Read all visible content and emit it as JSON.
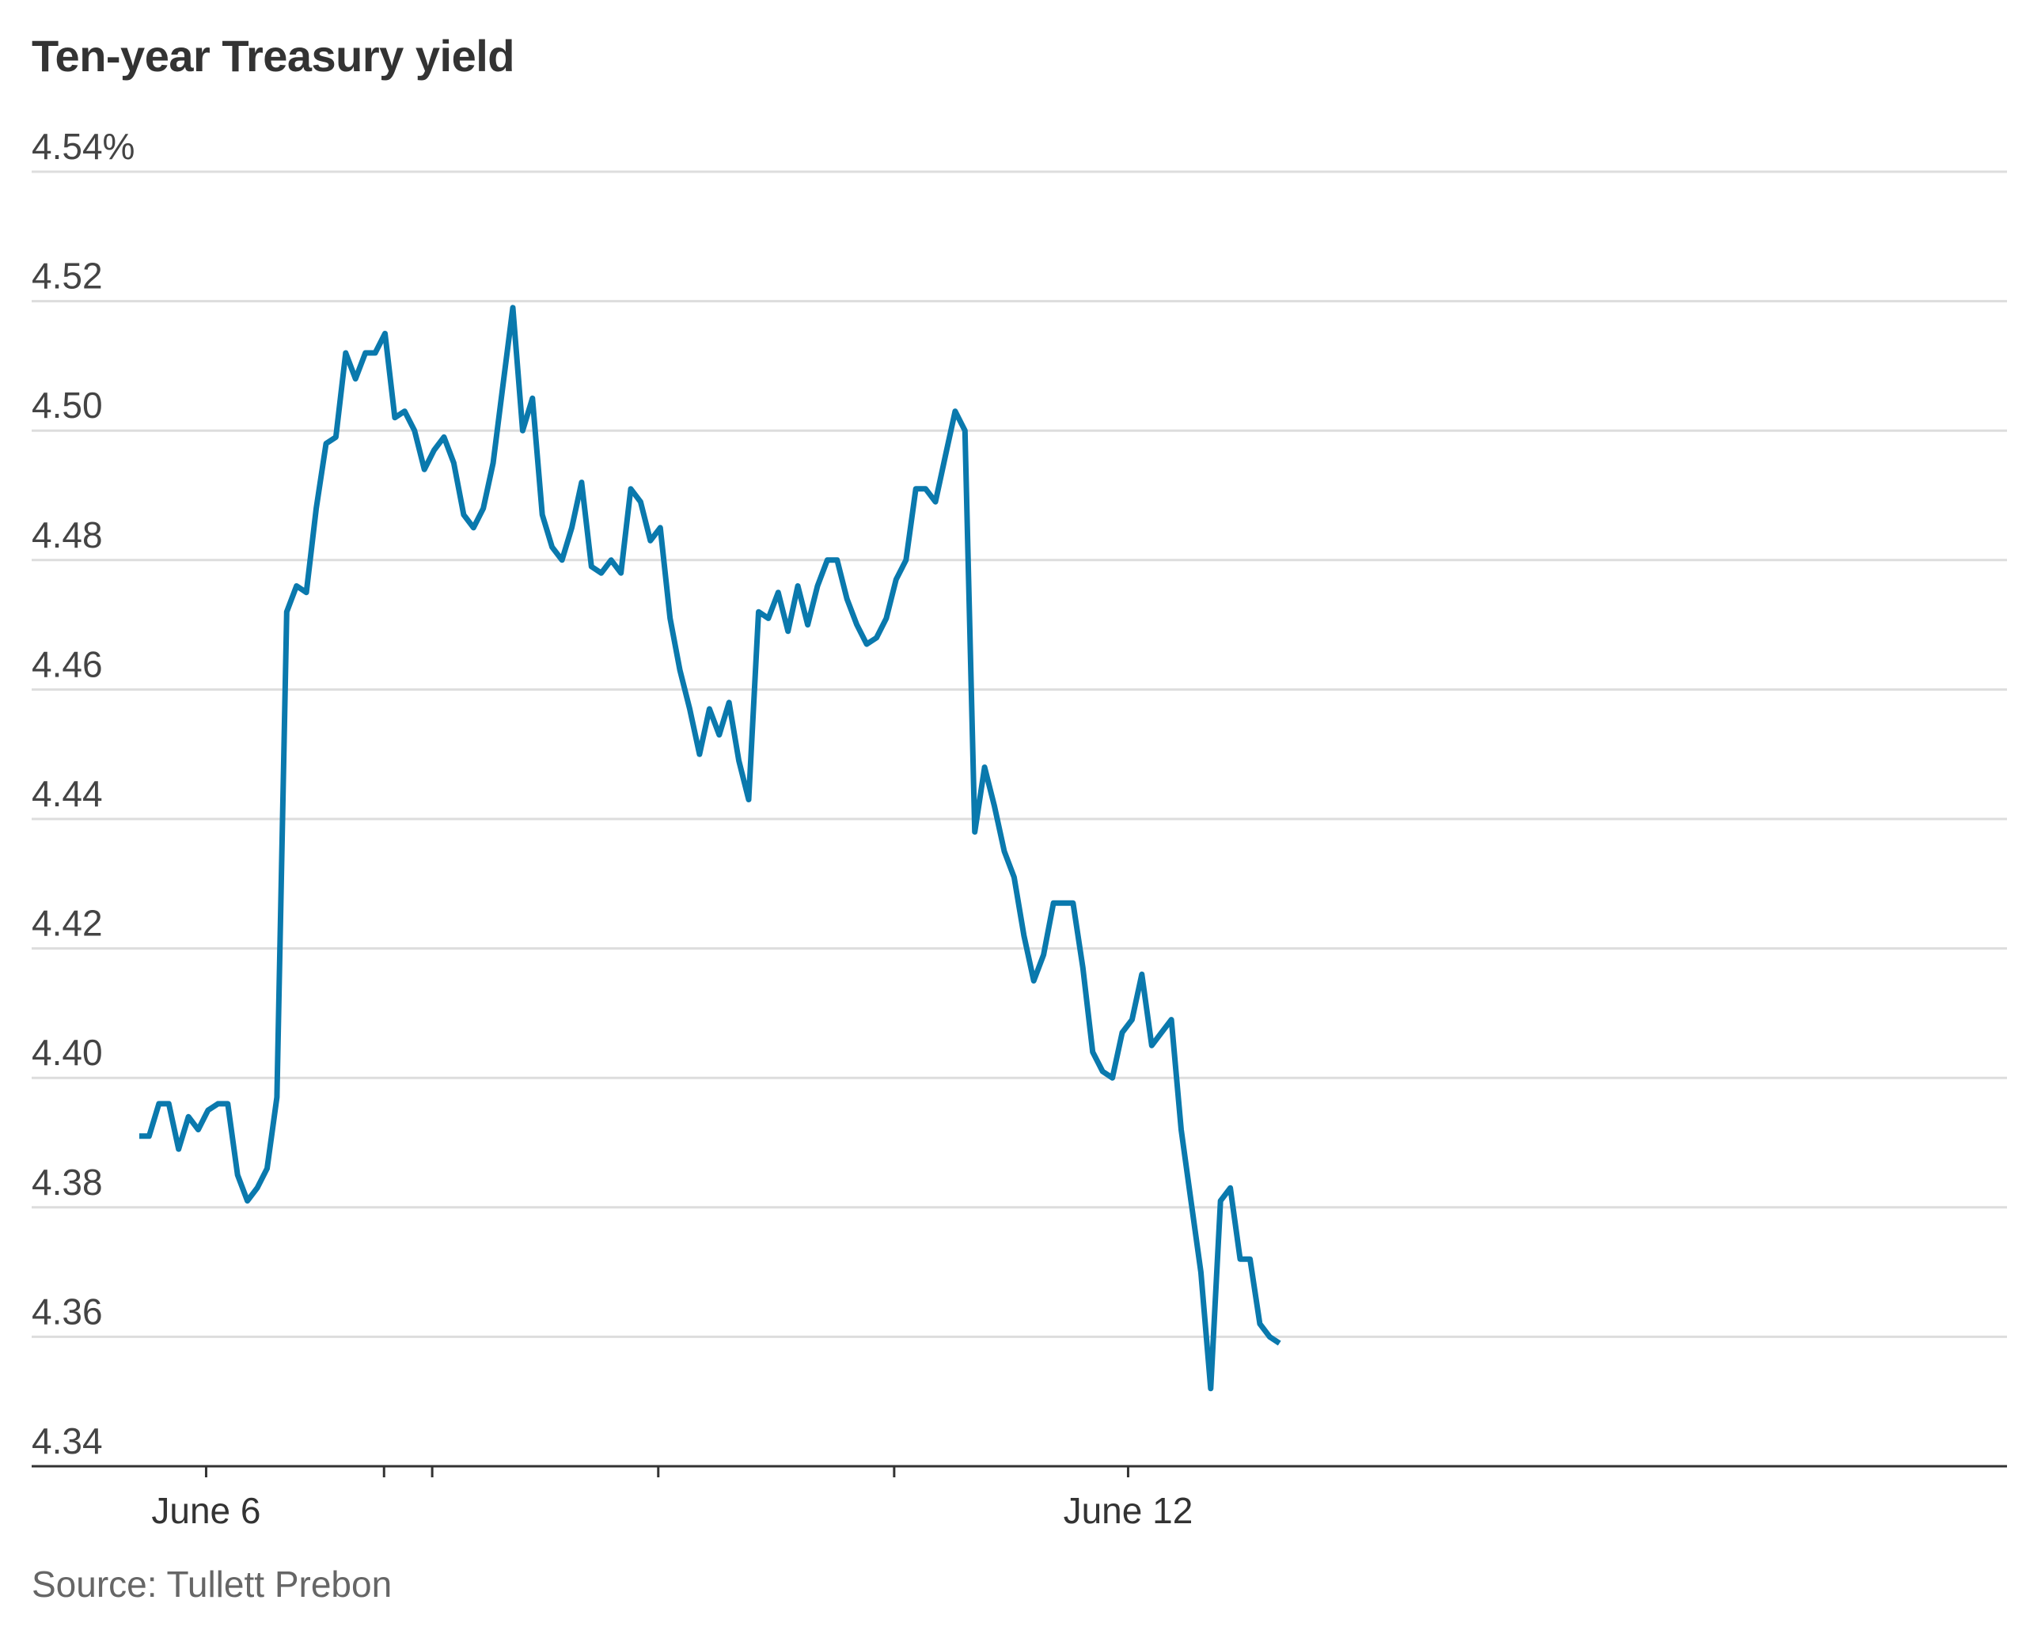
{
  "chart_data": {
    "type": "line",
    "title": "Ten-year Treasury yield",
    "source": "Source: Tullett Prebon",
    "ylim": [
      4.34,
      4.54
    ],
    "yticks": [
      "4.54%",
      "4.52",
      "4.50",
      "4.48",
      "4.46",
      "4.44",
      "4.42",
      "4.40",
      "4.38",
      "4.36",
      "4.34"
    ],
    "ytick_values": [
      4.54,
      4.52,
      4.5,
      4.48,
      4.46,
      4.44,
      4.42,
      4.4,
      4.38,
      4.36,
      4.34
    ],
    "xticks": [
      {
        "label": "June 6",
        "index": 6.8
      },
      {
        "label": "",
        "index": 24.9
      },
      {
        "label": "",
        "index": 29.8
      },
      {
        "label": "",
        "index": 52.8
      },
      {
        "label": "",
        "index": 76.8
      },
      {
        "label": "June 12",
        "index": 100.6
      }
    ],
    "grid": true,
    "line_color": "#0a79ad",
    "series": [
      {
        "values": [
          4.391,
          4.391,
          4.396,
          4.396,
          4.389,
          4.394,
          4.392,
          4.395,
          4.396,
          4.396,
          4.385,
          4.381,
          4.383,
          4.386,
          4.397,
          4.472,
          4.476,
          4.475,
          4.488,
          4.498,
          4.499,
          4.512,
          4.508,
          4.512,
          4.512,
          4.515,
          4.502,
          4.503,
          4.5,
          4.494,
          4.497,
          4.499,
          4.495,
          4.487,
          4.485,
          4.488,
          4.495,
          4.507,
          4.519,
          4.5,
          4.505,
          4.487,
          4.482,
          4.48,
          4.485,
          4.492,
          4.479,
          4.478,
          4.48,
          4.478,
          4.491,
          4.489,
          4.483,
          4.485,
          4.471,
          4.463,
          4.457,
          4.45,
          4.457,
          4.453,
          4.458,
          4.449,
          4.443,
          4.472,
          4.471,
          4.475,
          4.469,
          4.476,
          4.47,
          4.476,
          4.48,
          4.48,
          4.474,
          4.47,
          4.467,
          4.468,
          4.471,
          4.477,
          4.48,
          4.491,
          4.491,
          4.489,
          4.496,
          4.503,
          4.5,
          4.438,
          4.448,
          4.442,
          4.435,
          4.431,
          4.422,
          4.415,
          4.419,
          4.427,
          4.427,
          4.427,
          4.417,
          4.404,
          4.401,
          4.4,
          4.407,
          4.409,
          4.416,
          4.405,
          4.407,
          4.409,
          4.392,
          4.381,
          4.37,
          4.352,
          4.381,
          4.383,
          4.372,
          4.372,
          4.362,
          4.36,
          4.359
        ]
      }
    ]
  }
}
